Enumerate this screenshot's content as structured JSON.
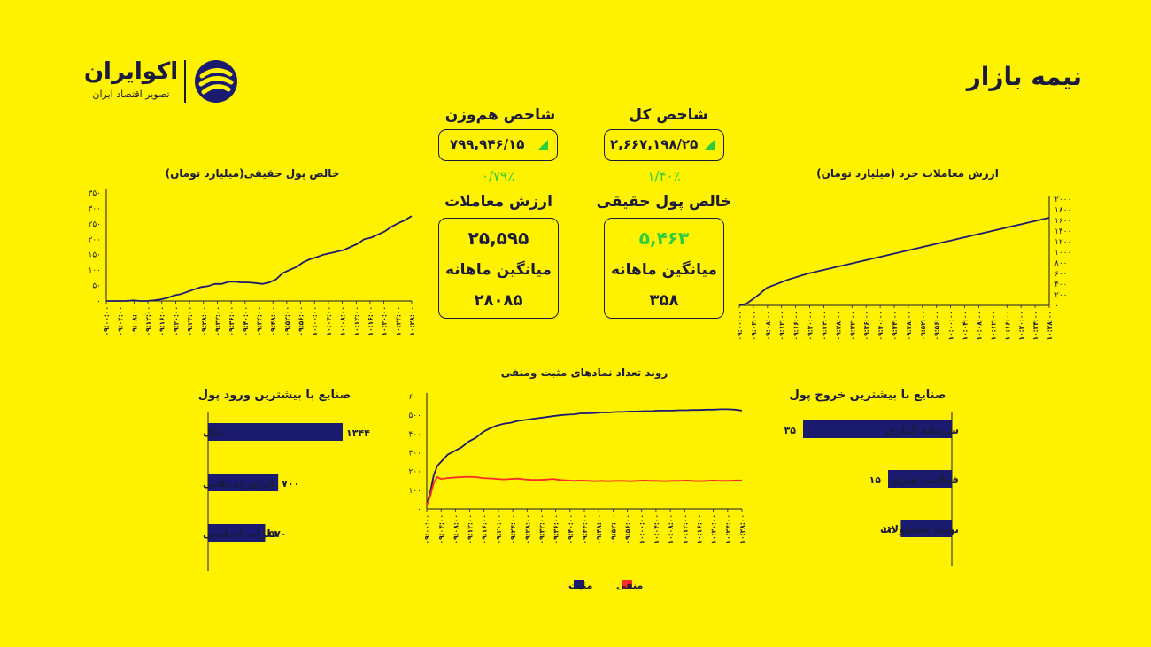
{
  "page_title": "نیمه بازار",
  "logo": {
    "name": "اکوایران",
    "tagline": "تصویر اقتصاد ایران"
  },
  "indices": {
    "total": {
      "label": "شاخص کل",
      "value": "۲,۶۶۷,۱۹۸/۲۵",
      "change": "۱/۴۰٪"
    },
    "equal_weight": {
      "label": "شاخص هم‌وزن",
      "value": "۷۹۹,۹۴۶/۱۵",
      "change": "۰/۷۹٪"
    }
  },
  "real_money": {
    "label": "خالص پول حقیقی",
    "value": "۵,۴۶۳",
    "avg_label": "میانگین ماهانه",
    "avg_value": "۳۵۸"
  },
  "trade_value": {
    "label": "ارزش معاملات",
    "value": "۲۵,۵۹۵",
    "avg_label": "میانگین ماهانه",
    "avg_value": "۲۸۰۸۵"
  },
  "colors": {
    "background": "#fff200",
    "navy": "#1a1a6e",
    "positive_green": "#2ecc40",
    "negative_red": "#ff2a2a",
    "text": "#1a1a3a"
  },
  "time_ticks": [
    "۰۹:۰۰:۰۰",
    "۰۹:۰۴:۰۰",
    "۰۹:۰۸:۰۰",
    "۰۹:۱۲:۰۰",
    "۰۹:۱۶:۰۰",
    "۰۹:۲۰:۰۰",
    "۰۹:۲۴:۰۰",
    "۰۹:۲۸:۰۰",
    "۰۹:۳۲:۰۰",
    "۰۹:۳۶:۰۰",
    "۰۹:۴۰:۰۰",
    "۰۹:۴۴:۰۰",
    "۰۹:۴۸:۰۰",
    "۰۹:۵۲:۰۰",
    "۰۹:۵۶:۰۰",
    "۱۰:۰۰:۰۰",
    "۱۰:۰۴:۰۰",
    "۱۰:۰۸:۰۰",
    "۱۰:۱۲:۰۰",
    "۱۰:۱۶:۰۰",
    "۱۰:۲۰:۰۰",
    "۱۰:۲۴:۰۰",
    "۱۰:۲۸:۰۰"
  ],
  "chart_data": [
    {
      "id": "real_money_chart",
      "type": "line",
      "title": "خالص پول حقیقی(میلیارد تومان)",
      "ylim": [
        0,
        350
      ],
      "yticks": [
        0,
        50,
        100,
        150,
        200,
        250,
        300,
        350
      ],
      "ytick_labels": [
        "۰",
        "۵۰",
        "۱۰۰",
        "۱۵۰",
        "۲۰۰",
        "۲۵۰",
        "۳۰۰",
        "۳۵۰"
      ],
      "x": [
        0,
        2,
        4,
        6,
        8,
        10,
        12,
        14,
        16,
        18,
        20,
        22,
        24,
        26,
        28,
        30,
        32,
        34,
        36,
        38,
        40,
        42,
        44,
        46,
        48,
        50,
        52,
        54,
        56,
        58,
        60,
        62,
        64,
        66,
        68,
        70,
        72,
        74,
        76,
        78,
        80,
        82,
        84,
        86,
        88,
        90
      ],
      "series": [
        {
          "values": [
            0,
            0,
            0,
            0,
            2,
            0,
            0,
            2,
            5,
            10,
            18,
            22,
            30,
            38,
            45,
            48,
            55,
            55,
            62,
            62,
            60,
            60,
            58,
            55,
            60,
            70,
            90,
            100,
            110,
            125,
            135,
            142,
            150,
            155,
            160,
            165,
            175,
            185,
            200,
            205,
            215,
            225,
            240,
            252,
            262,
            275
          ]
        }
      ]
    },
    {
      "id": "retail_trade_chart",
      "type": "line",
      "title": "ارزش معاملات خرد (میلیارد تومان)",
      "ylim": [
        0,
        2000
      ],
      "yticks": [
        0,
        200,
        400,
        600,
        800,
        1000,
        1200,
        1400,
        1600,
        1800,
        2000
      ],
      "ytick_labels": [
        "۰",
        "۲۰۰",
        "۴۰۰",
        "۶۰۰",
        "۸۰۰",
        "۱۰۰۰",
        "۱۲۰۰",
        "۱۴۰۰",
        "۱۶۰۰",
        "۱۸۰۰",
        "۲۰۰۰"
      ],
      "x": [
        0,
        2,
        4,
        6,
        8,
        10,
        12,
        14,
        16,
        18,
        20,
        22,
        24,
        26,
        28,
        30,
        32,
        34,
        36,
        38,
        40,
        42,
        44,
        46,
        48,
        50,
        52,
        54,
        56,
        58,
        60,
        62,
        64,
        66,
        68,
        70,
        72,
        74,
        76,
        78,
        80,
        82,
        84,
        86,
        88,
        90
      ],
      "series": [
        {
          "values": [
            0,
            30,
            120,
            220,
            330,
            380,
            430,
            480,
            520,
            560,
            600,
            630,
            660,
            690,
            720,
            750,
            780,
            810,
            840,
            870,
            900,
            930,
            960,
            990,
            1020,
            1050,
            1080,
            1110,
            1140,
            1170,
            1200,
            1230,
            1260,
            1290,
            1320,
            1350,
            1380,
            1410,
            1440,
            1470,
            1500,
            1530,
            1560,
            1590,
            1620,
            1650
          ]
        }
      ]
    },
    {
      "id": "positive_negative_chart",
      "type": "line",
      "title": "روند تعداد نمادهای مثبت ومنفی",
      "ylim": [
        0,
        600
      ],
      "yticks": [
        0,
        100,
        200,
        300,
        400,
        500,
        600
      ],
      "ytick_labels": [
        "۰",
        "۱۰۰",
        "۲۰۰",
        "۳۰۰",
        "۴۰۰",
        "۵۰۰",
        "۶۰۰"
      ],
      "x": [
        0,
        1,
        2,
        3,
        4,
        6,
        8,
        10,
        12,
        14,
        16,
        18,
        20,
        22,
        24,
        26,
        28,
        30,
        32,
        34,
        36,
        38,
        40,
        42,
        44,
        46,
        48,
        50,
        52,
        54,
        56,
        58,
        60,
        62,
        64,
        66,
        68,
        70,
        72,
        74,
        76,
        78,
        80,
        82,
        84,
        86,
        88,
        90
      ],
      "series": [
        {
          "name": "مثبت",
          "color": "#1a1a6e",
          "values": [
            20,
            90,
            180,
            230,
            250,
            290,
            310,
            330,
            360,
            380,
            410,
            430,
            445,
            455,
            460,
            470,
            475,
            480,
            485,
            490,
            495,
            500,
            503,
            505,
            510,
            510,
            512,
            515,
            515,
            518,
            518,
            520,
            520,
            522,
            522,
            525,
            525,
            525,
            527,
            527,
            528,
            528,
            530,
            530,
            532,
            532,
            530,
            525
          ]
        },
        {
          "name": "منفی",
          "color": "#ff2a2a",
          "values": [
            20,
            70,
            140,
            170,
            160,
            165,
            168,
            170,
            172,
            170,
            165,
            163,
            160,
            158,
            160,
            162,
            158,
            155,
            155,
            157,
            160,
            155,
            152,
            150,
            152,
            150,
            148,
            150,
            148,
            150,
            150,
            148,
            150,
            152,
            150,
            150,
            148,
            150,
            150,
            152,
            150,
            148,
            150,
            152,
            150,
            150,
            152,
            152
          ]
        }
      ],
      "legend": [
        "منفی",
        "مثبت"
      ]
    },
    {
      "id": "inflow_industries",
      "type": "bar",
      "title": "صنایع با بیشترین ورود پول",
      "categories": [
        "بانک",
        "فراورده نفتی",
        "فلزات اساسی"
      ],
      "values": [
        1344,
        700,
        570
      ],
      "value_labels": [
        "۱۳۴۴",
        "۷۰۰",
        "۵۷۰"
      ],
      "xlim": [
        0,
        1344
      ]
    },
    {
      "id": "outflow_industries",
      "type": "bar",
      "title": "صنایع با بیشترین خروج پول",
      "categories": [
        "سرمایه گذاری",
        "فعالیت هنری",
        "تولید محصولات"
      ],
      "values": [
        35,
        15,
        12
      ],
      "value_labels": [
        "۳۵",
        "۱۵",
        "۱۲"
      ],
      "xlim": [
        0,
        35
      ]
    }
  ]
}
